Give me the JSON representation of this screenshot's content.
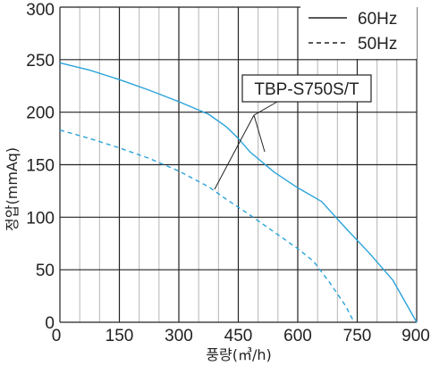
{
  "chart_data": {
    "type": "line",
    "xlabel": "풍량(㎥/h)",
    "ylabel": "정압(mmAq)",
    "xlim": [
      0,
      900
    ],
    "ylim": [
      0,
      300
    ],
    "x_ticks": [
      "0",
      "150",
      "300",
      "450",
      "600",
      "750",
      "900"
    ],
    "y_ticks": [
      "0",
      "50",
      "100",
      "150",
      "200",
      "250",
      "300"
    ],
    "grid": true,
    "legend_position": "top-right",
    "annotation": "TBP-S750S/T",
    "series": [
      {
        "name": "60Hz",
        "style": "solid",
        "color": "#29a3da",
        "points": [
          [
            0,
            247
          ],
          [
            75,
            240
          ],
          [
            150,
            231
          ],
          [
            225,
            221
          ],
          [
            300,
            210
          ],
          [
            375,
            198
          ],
          [
            420,
            186
          ],
          [
            450,
            175
          ],
          [
            480,
            162
          ],
          [
            540,
            143
          ],
          [
            600,
            128
          ],
          [
            660,
            115
          ],
          [
            720,
            90
          ],
          [
            780,
            66
          ],
          [
            840,
            40
          ],
          [
            870,
            20
          ],
          [
            900,
            0
          ]
        ]
      },
      {
        "name": "50Hz",
        "style": "dashed",
        "color": "#29a3da",
        "points": [
          [
            0,
            183
          ],
          [
            75,
            175
          ],
          [
            150,
            166
          ],
          [
            225,
            156
          ],
          [
            300,
            144
          ],
          [
            375,
            129
          ],
          [
            420,
            117
          ],
          [
            480,
            102
          ],
          [
            540,
            86
          ],
          [
            600,
            70
          ],
          [
            640,
            58
          ],
          [
            680,
            38
          ],
          [
            720,
            16
          ],
          [
            742,
            0
          ]
        ]
      }
    ]
  }
}
